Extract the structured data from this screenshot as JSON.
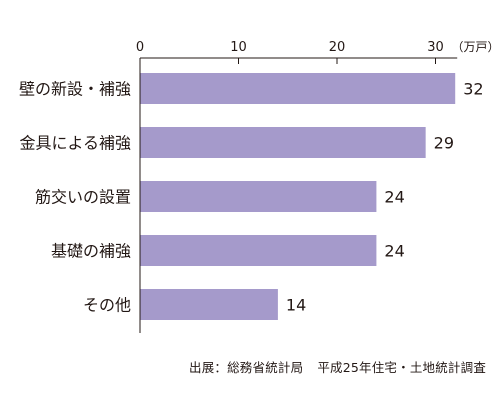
{
  "chart_data": {
    "type": "bar",
    "orientation": "horizontal",
    "categories": [
      "壁の新設・補強",
      "金具による補強",
      "筋交いの設置",
      "基礎の補強",
      "その他"
    ],
    "values": [
      32,
      29,
      24,
      24,
      14
    ],
    "data_labels": [
      "32",
      "29",
      "24",
      "24",
      "14"
    ],
    "unit": "（万戸）",
    "xlim": [
      0,
      32
    ],
    "ticks": [
      0,
      10,
      20,
      30
    ],
    "tick_labels": [
      "0",
      "10",
      "20",
      "30"
    ],
    "grid": false,
    "legend": "none"
  },
  "colors": {
    "bar": "#a59acb",
    "axis": "#231815",
    "text": "#231815"
  },
  "source": {
    "left": "出展：総務省統計局",
    "right": "平成25年住宅・土地統計調査"
  }
}
